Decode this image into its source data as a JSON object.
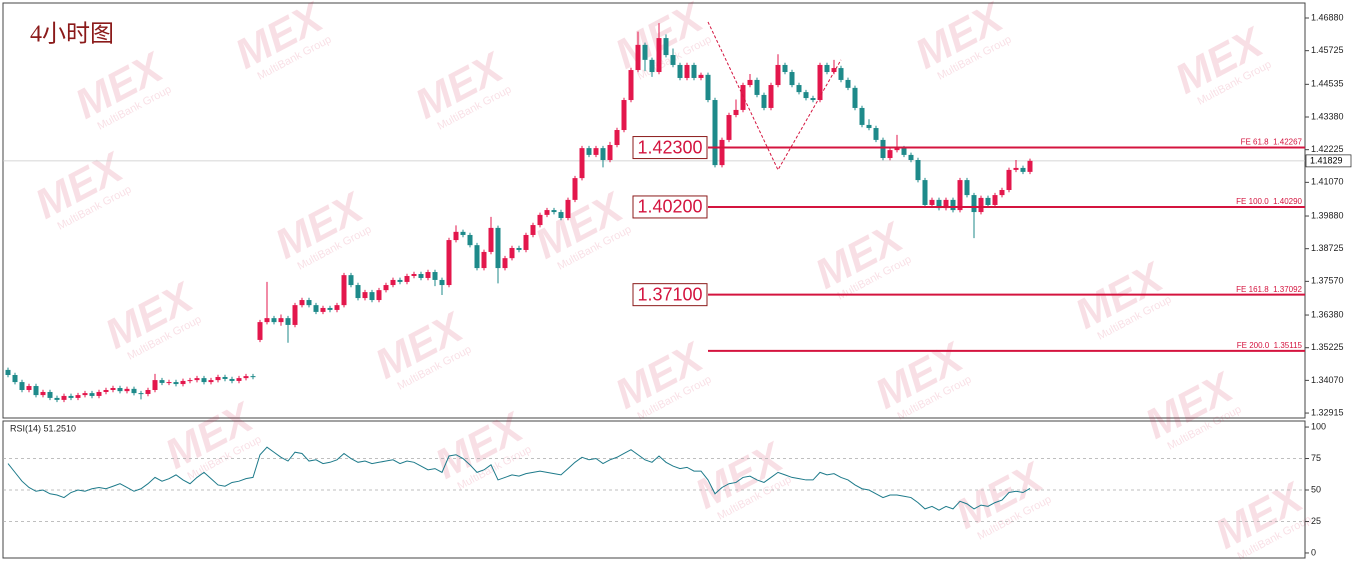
{
  "chart_data": [
    {
      "type": "candlestick",
      "title": "4小时图",
      "open": [
        1.3444,
        1.3426,
        1.3401,
        1.3373,
        1.3387,
        1.3355,
        1.3366,
        1.3345,
        1.3338,
        1.3352,
        1.3345,
        1.3355,
        1.3362,
        1.3352,
        1.3366,
        1.3373,
        1.338,
        1.3369,
        1.3377,
        1.3362,
        1.3359,
        1.3373,
        1.3408,
        1.3398,
        1.3401,
        1.3394,
        1.3405,
        1.3408,
        1.3415,
        1.3401,
        1.3408,
        1.3419,
        1.3412,
        1.3405,
        1.3415,
        1.3422,
        1.355,
        1.3613,
        1.3627,
        1.3613,
        1.3627,
        1.3603,
        1.3673,
        1.3691,
        1.3673,
        1.3649,
        1.3663,
        1.3656,
        1.3673,
        1.3779,
        1.3744,
        1.3698,
        1.3719,
        1.3691,
        1.3726,
        1.3744,
        1.3762,
        1.3755,
        1.3776,
        1.3783,
        1.3769,
        1.379,
        1.3762,
        1.3744,
        1.3903,
        1.3932,
        1.3921,
        1.3885,
        1.3804,
        1.3861,
        1.3946,
        1.3804,
        1.3839,
        1.3875,
        1.3868,
        1.3921,
        1.3956,
        1.3992,
        1.4009,
        1.4002,
        1.3981,
        1.4045,
        1.4122,
        1.4228,
        1.4204,
        1.4228,
        1.4186,
        1.4239,
        1.4292,
        1.4398,
        1.4504,
        1.4593,
        1.454,
        1.4497,
        1.4617,
        1.4557,
        1.4522,
        1.4476,
        1.4522,
        1.4476,
        1.4487,
        1.4398,
        1.4168,
        1.4257,
        1.4345,
        1.4363,
        1.4451,
        1.4469,
        1.4416,
        1.437,
        1.4451,
        1.4522,
        1.4497,
        1.4451,
        1.4426,
        1.4405,
        1.4398,
        1.4522,
        1.4497,
        1.4511,
        1.4469,
        1.4441,
        1.437,
        1.431,
        1.4299,
        1.4257,
        1.4193,
        1.4221,
        1.4228,
        1.4204,
        1.4186,
        1.4115,
        1.4027,
        1.4045,
        1.4016,
        1.4045,
        1.4009,
        1.4115,
        1.4062,
        1.4002,
        1.4052,
        1.4027,
        1.4062,
        1.408,
        1.4151,
        1.4158,
        1.4144
      ],
      "high": [
        1.3452,
        1.3434,
        1.3409,
        1.3395,
        1.3395,
        1.3374,
        1.3374,
        1.3353,
        1.336,
        1.336,
        1.3363,
        1.337,
        1.337,
        1.3374,
        1.3381,
        1.3388,
        1.3388,
        1.3385,
        1.3385,
        1.337,
        1.3381,
        1.343,
        1.3416,
        1.3409,
        1.3409,
        1.3413,
        1.3416,
        1.3423,
        1.3423,
        1.3416,
        1.3427,
        1.3427,
        1.342,
        1.3423,
        1.343,
        1.343,
        1.3621,
        1.3755,
        1.3635,
        1.364,
        1.3635,
        1.3681,
        1.3699,
        1.3699,
        1.3681,
        1.3671,
        1.3671,
        1.3681,
        1.3787,
        1.3787,
        1.3752,
        1.3727,
        1.3727,
        1.3734,
        1.3752,
        1.377,
        1.377,
        1.3784,
        1.3791,
        1.3791,
        1.3798,
        1.3798,
        1.377,
        1.3911,
        1.3955,
        1.394,
        1.3929,
        1.3893,
        1.3869,
        1.3985,
        1.3954,
        1.3847,
        1.3883,
        1.3883,
        1.3929,
        1.3964,
        1.4,
        1.4017,
        1.4017,
        1.401,
        1.4053,
        1.413,
        1.4236,
        1.4236,
        1.4236,
        1.4236,
        1.425,
        1.43,
        1.4406,
        1.4512,
        1.464,
        1.4601,
        1.4548,
        1.467,
        1.463,
        1.458,
        1.453,
        1.453,
        1.453,
        1.4495,
        1.4495,
        1.4406,
        1.4265,
        1.4353,
        1.44,
        1.4459,
        1.449,
        1.4477,
        1.4424,
        1.4459,
        1.456,
        1.453,
        1.4505,
        1.4459,
        1.4434,
        1.4413,
        1.453,
        1.453,
        1.454,
        1.4519,
        1.4477,
        1.4449,
        1.4378,
        1.433,
        1.4307,
        1.4265,
        1.4229,
        1.4275,
        1.4236,
        1.4212,
        1.4194,
        1.4123,
        1.4053,
        1.4053,
        1.4053,
        1.4053,
        1.4123,
        1.4123,
        1.407,
        1.406,
        1.406,
        1.407,
        1.4088,
        1.4159,
        1.4186,
        1.4166,
        1.4191
      ],
      "low": [
        1.3418,
        1.3393,
        1.3365,
        1.3365,
        1.3347,
        1.3347,
        1.3337,
        1.333,
        1.333,
        1.3337,
        1.3337,
        1.3347,
        1.3344,
        1.3344,
        1.3358,
        1.3365,
        1.3361,
        1.3361,
        1.3354,
        1.334,
        1.3351,
        1.3365,
        1.339,
        1.339,
        1.3386,
        1.3386,
        1.3397,
        1.34,
        1.3393,
        1.3393,
        1.34,
        1.3404,
        1.3397,
        1.3397,
        1.3407,
        1.3411,
        1.3542,
        1.3605,
        1.3605,
        1.36,
        1.354,
        1.3595,
        1.3665,
        1.3665,
        1.3641,
        1.3641,
        1.3648,
        1.3648,
        1.3665,
        1.3736,
        1.369,
        1.369,
        1.3683,
        1.3683,
        1.3718,
        1.3736,
        1.3747,
        1.3747,
        1.3768,
        1.3761,
        1.3761,
        1.374,
        1.3709,
        1.3736,
        1.3895,
        1.3913,
        1.3877,
        1.3796,
        1.3796,
        1.3853,
        1.375,
        1.3796,
        1.3831,
        1.386,
        1.386,
        1.3913,
        1.3948,
        1.3984,
        1.3994,
        1.3973,
        1.3973,
        1.4037,
        1.4114,
        1.4196,
        1.4196,
        1.416,
        1.4178,
        1.4231,
        1.4284,
        1.439,
        1.4496,
        1.45,
        1.448,
        1.4489,
        1.4549,
        1.4514,
        1.4468,
        1.4468,
        1.4468,
        1.4468,
        1.439,
        1.416,
        1.416,
        1.4249,
        1.4337,
        1.4355,
        1.4443,
        1.4408,
        1.4362,
        1.4362,
        1.4443,
        1.4489,
        1.4443,
        1.4418,
        1.4397,
        1.439,
        1.439,
        1.4489,
        1.4489,
        1.4461,
        1.4433,
        1.4362,
        1.4302,
        1.4291,
        1.4249,
        1.4185,
        1.4185,
        1.4213,
        1.4196,
        1.4178,
        1.4107,
        1.4019,
        1.4019,
        1.4008,
        1.4008,
        1.4001,
        1.4001,
        1.4054,
        1.391,
        1.3994,
        1.4019,
        1.4019,
        1.4054,
        1.4072,
        1.4143,
        1.4136,
        1.4136
      ],
      "close": [
        1.3426,
        1.3401,
        1.3373,
        1.3387,
        1.3355,
        1.3366,
        1.3345,
        1.3338,
        1.3352,
        1.3345,
        1.3355,
        1.3362,
        1.3352,
        1.3366,
        1.3373,
        1.338,
        1.3369,
        1.3377,
        1.3362,
        1.3359,
        1.3373,
        1.3408,
        1.3398,
        1.3401,
        1.3394,
        1.3405,
        1.3408,
        1.3415,
        1.3401,
        1.3408,
        1.3419,
        1.3412,
        1.3405,
        1.3415,
        1.3422,
        1.3419,
        1.3613,
        1.3627,
        1.3613,
        1.3627,
        1.3603,
        1.3673,
        1.3691,
        1.3673,
        1.3649,
        1.3663,
        1.3656,
        1.3673,
        1.3779,
        1.3744,
        1.3698,
        1.3719,
        1.3691,
        1.3726,
        1.3744,
        1.3762,
        1.3755,
        1.3776,
        1.3783,
        1.3769,
        1.379,
        1.3762,
        1.3744,
        1.3903,
        1.3932,
        1.3921,
        1.3885,
        1.3804,
        1.3861,
        1.3946,
        1.3804,
        1.3839,
        1.3875,
        1.3868,
        1.3921,
        1.3956,
        1.3992,
        1.4009,
        1.4002,
        1.3981,
        1.4045,
        1.4122,
        1.4228,
        1.4204,
        1.4228,
        1.4186,
        1.4239,
        1.4292,
        1.4398,
        1.4504,
        1.4593,
        1.454,
        1.4497,
        1.4617,
        1.4557,
        1.4522,
        1.4476,
        1.4522,
        1.4476,
        1.4487,
        1.4398,
        1.4168,
        1.4257,
        1.4345,
        1.4363,
        1.4451,
        1.4469,
        1.4416,
        1.437,
        1.4451,
        1.4522,
        1.4497,
        1.4451,
        1.4426,
        1.4405,
        1.4398,
        1.4522,
        1.4497,
        1.4511,
        1.4469,
        1.4441,
        1.437,
        1.431,
        1.4299,
        1.4257,
        1.4193,
        1.4221,
        1.4228,
        1.4204,
        1.4186,
        1.4115,
        1.4027,
        1.4045,
        1.4016,
        1.4045,
        1.4009,
        1.4115,
        1.4062,
        1.4002,
        1.4052,
        1.4027,
        1.4062,
        1.408,
        1.4151,
        1.4158,
        1.4144,
        1.4183
      ],
      "up_color": "#e3174c",
      "down_color": "#1e8a8a",
      "ylim": [
        1.3274,
        1.4741
      ],
      "yticks": [
        {
          "value": 1.4688,
          "label": "1.46880"
        },
        1.45725,
        1.44535,
        {
          "value": 1.4338,
          "label": "1.43380"
        },
        1.42225,
        {
          "value": 1.4107,
          "label": "1.41070"
        },
        {
          "value": 1.3988,
          "label": "1.39880"
        },
        1.38725,
        {
          "value": 1.3757,
          "label": "1.37570"
        },
        {
          "value": 1.3638,
          "label": "1.36380"
        },
        1.35225,
        {
          "value": 1.3407,
          "label": "1.34070"
        },
        1.32915
      ],
      "last_price": {
        "value": 1.41829,
        "label": "1.41829"
      },
      "levels": [
        {
          "value": 1.423,
          "label": "1.42300",
          "note": "FE 61.8  1.42267"
        },
        {
          "value": 1.402,
          "label": "1.40200",
          "note": "FE 100.0  1.40290"
        },
        {
          "value": 1.371,
          "label": "1.37100",
          "note": "FE 161.8  1.37092"
        },
        {
          "value": 1.35115,
          "note": "FE 200.0  1.35115"
        }
      ],
      "level_start": 100,
      "level_color": "#d4143f",
      "pattern": {
        "x": [
          100,
          110,
          119
        ],
        "y": [
          1.4674,
          1.4151,
          1.454
        ]
      }
    },
    {
      "type": "line",
      "label": "RSI(14) 51.2510",
      "color": "#1d7a8a",
      "values": [
        71,
        64,
        57,
        52,
        49,
        50,
        47,
        46,
        44,
        48,
        50,
        49,
        51,
        52,
        51,
        53,
        55,
        52,
        49,
        51,
        55,
        60,
        57,
        59,
        62,
        58,
        55,
        60,
        64,
        59,
        54,
        53,
        56,
        57,
        59,
        60,
        78,
        84,
        80,
        76,
        73,
        80,
        79,
        73,
        74,
        71,
        72,
        74,
        79,
        75,
        72,
        73,
        71,
        72,
        73,
        74,
        71,
        73,
        72,
        69,
        66,
        67,
        64,
        77,
        78,
        75,
        70,
        64,
        66,
        70,
        58,
        60,
        62,
        61,
        63,
        64,
        65,
        64,
        63,
        62,
        67,
        72,
        76,
        74,
        75,
        71,
        74,
        76,
        79,
        82,
        78,
        74,
        72,
        77,
        72,
        69,
        67,
        68,
        65,
        65,
        58,
        47,
        52,
        55,
        56,
        60,
        61,
        58,
        56,
        60,
        64,
        62,
        60,
        59,
        58,
        58,
        64,
        62,
        63,
        60,
        58,
        54,
        51,
        50,
        47,
        44,
        46,
        46,
        45,
        44,
        40,
        35,
        37,
        34,
        37,
        35,
        41,
        39,
        35,
        38,
        37,
        40,
        42,
        48,
        49,
        48,
        51.251
      ],
      "ylim": [
        -4,
        104.8
      ],
      "yticks": [
        0,
        25,
        50,
        75,
        100
      ],
      "levels": [
        25,
        50,
        75
      ]
    }
  ],
  "watermark": {
    "logo": "MEX",
    "text": "MultiBank Group"
  }
}
